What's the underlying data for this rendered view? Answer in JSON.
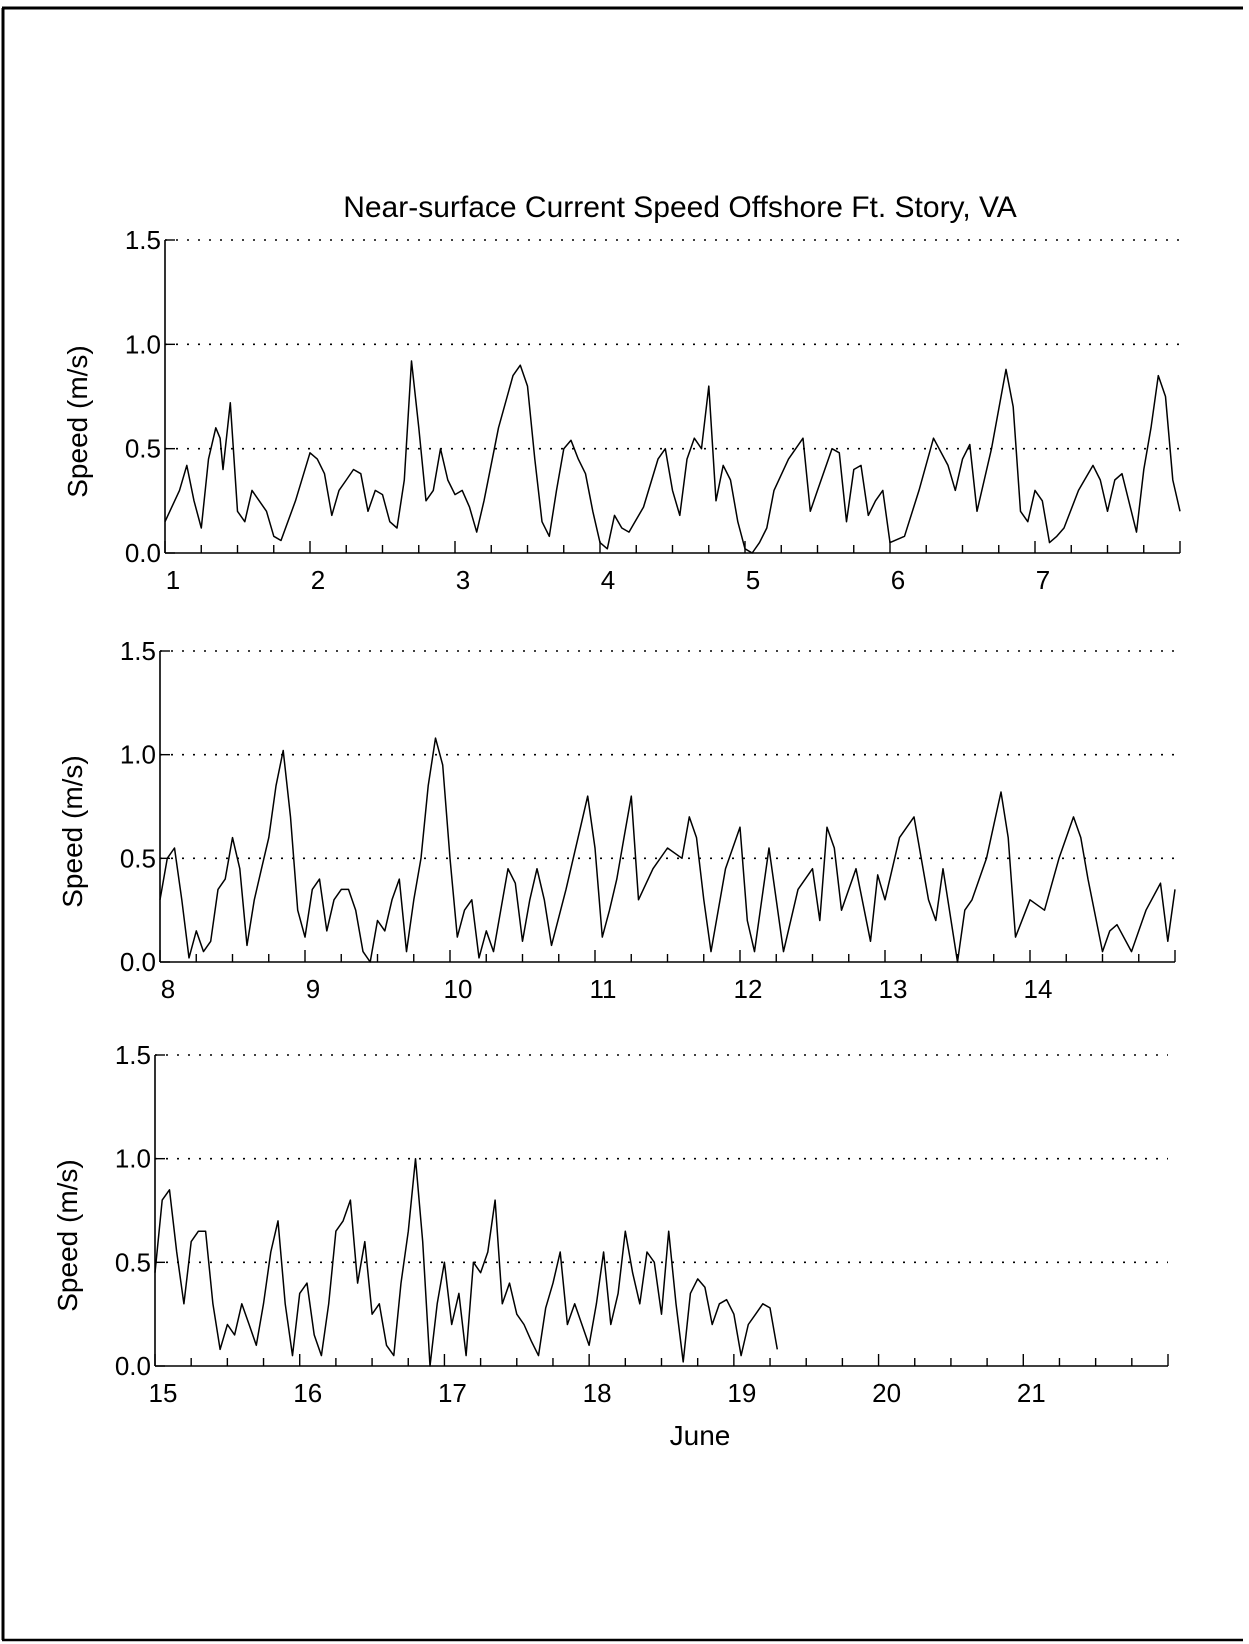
{
  "chart_data": [
    {
      "type": "line",
      "title": "Near-surface Current Speed Offshore Ft. Story, VA",
      "ylabel": "Speed (m/s)",
      "xlabel": "",
      "xlim": [
        1,
        8
      ],
      "ylim": [
        0,
        1.5
      ],
      "x_ticks": [
        "1",
        "2",
        "3",
        "4",
        "5",
        "6",
        "7"
      ],
      "y_ticks": [
        "0.0",
        "0.5",
        "1.0",
        "1.5"
      ],
      "grid": "dotted horizontal at 0.5, 1.0, 1.5",
      "series": [
        {
          "x": [
            1.0,
            1.1,
            1.15,
            1.2,
            1.25,
            1.3,
            1.35,
            1.38,
            1.4,
            1.45,
            1.5,
            1.55,
            1.6,
            1.7,
            1.75,
            1.8,
            1.9,
            2.0,
            2.05,
            2.1,
            2.15,
            2.2,
            2.25,
            2.3,
            2.35,
            2.4,
            2.45,
            2.5,
            2.55,
            2.6,
            2.65,
            2.7,
            2.75,
            2.8,
            2.85,
            2.9,
            2.95,
            3.0,
            3.05,
            3.1,
            3.15,
            3.2,
            3.3,
            3.4,
            3.45,
            3.5,
            3.55,
            3.6,
            3.65,
            3.7,
            3.75,
            3.8,
            3.85,
            3.9,
            3.95,
            4.0,
            4.05,
            4.1,
            4.15,
            4.2,
            4.3,
            4.4,
            4.45,
            4.5,
            4.55,
            4.6,
            4.65,
            4.7,
            4.75,
            4.8,
            4.85,
            4.9,
            4.95,
            5.0,
            5.05,
            5.1,
            5.15,
            5.2,
            5.3,
            5.4,
            5.45,
            5.5,
            5.6,
            5.65,
            5.7,
            5.75,
            5.8,
            5.85,
            5.9,
            5.95,
            6.0,
            6.1,
            6.2,
            6.3,
            6.4,
            6.45,
            6.5,
            6.55,
            6.6,
            6.7,
            6.8,
            6.85,
            6.9,
            6.95,
            7.0,
            7.05,
            7.1,
            7.15,
            7.2,
            7.3,
            7.4,
            7.45,
            7.5,
            7.55,
            7.6,
            7.7,
            7.75,
            7.8,
            7.85,
            7.9,
            7.95,
            8.0
          ],
          "y": [
            0.15,
            0.3,
            0.42,
            0.25,
            0.12,
            0.45,
            0.6,
            0.55,
            0.4,
            0.72,
            0.2,
            0.15,
            0.3,
            0.2,
            0.08,
            0.06,
            0.25,
            0.48,
            0.45,
            0.38,
            0.18,
            0.3,
            0.35,
            0.4,
            0.38,
            0.2,
            0.3,
            0.28,
            0.15,
            0.12,
            0.35,
            0.92,
            0.6,
            0.25,
            0.3,
            0.5,
            0.35,
            0.28,
            0.3,
            0.22,
            0.1,
            0.25,
            0.6,
            0.85,
            0.9,
            0.8,
            0.45,
            0.15,
            0.08,
            0.3,
            0.5,
            0.54,
            0.45,
            0.38,
            0.2,
            0.05,
            0.02,
            0.18,
            0.12,
            0.1,
            0.22,
            0.45,
            0.5,
            0.3,
            0.18,
            0.45,
            0.55,
            0.5,
            0.8,
            0.25,
            0.42,
            0.35,
            0.15,
            0.02,
            0.0,
            0.05,
            0.12,
            0.3,
            0.45,
            0.55,
            0.2,
            0.3,
            0.5,
            0.48,
            0.15,
            0.4,
            0.42,
            0.18,
            0.25,
            0.3,
            0.05,
            0.08,
            0.3,
            0.55,
            0.42,
            0.3,
            0.45,
            0.52,
            0.2,
            0.5,
            0.88,
            0.7,
            0.2,
            0.15,
            0.3,
            0.25,
            0.05,
            0.08,
            0.12,
            0.3,
            0.42,
            0.35,
            0.2,
            0.35,
            0.38,
            0.1,
            0.4,
            0.6,
            0.85,
            0.75,
            0.35,
            0.2
          ]
        }
      ]
    },
    {
      "type": "line",
      "title": "",
      "ylabel": "Speed (m/s)",
      "xlabel": "",
      "xlim": [
        8,
        15
      ],
      "ylim": [
        0,
        1.5
      ],
      "x_ticks": [
        "8",
        "9",
        "10",
        "11",
        "12",
        "13",
        "14"
      ],
      "y_ticks": [
        "0.0",
        "0.5",
        "1.0",
        "1.5"
      ],
      "grid": "dotted horizontal at 0.5, 1.0, 1.5",
      "series": [
        {
          "x": [
            8.0,
            8.05,
            8.1,
            8.15,
            8.2,
            8.25,
            8.3,
            8.35,
            8.4,
            8.45,
            8.5,
            8.55,
            8.6,
            8.65,
            8.7,
            8.75,
            8.8,
            8.85,
            8.9,
            8.95,
            9.0,
            9.05,
            9.1,
            9.15,
            9.2,
            9.25,
            9.3,
            9.35,
            9.4,
            9.45,
            9.5,
            9.55,
            9.6,
            9.65,
            9.7,
            9.75,
            9.8,
            9.85,
            9.9,
            9.95,
            10.0,
            10.05,
            10.1,
            10.15,
            10.2,
            10.25,
            10.3,
            10.4,
            10.45,
            10.5,
            10.55,
            10.6,
            10.65,
            10.7,
            10.8,
            10.9,
            10.95,
            11.0,
            11.05,
            11.1,
            11.15,
            11.2,
            11.25,
            11.3,
            11.4,
            11.5,
            11.6,
            11.65,
            11.7,
            11.75,
            11.8,
            11.9,
            12.0,
            12.05,
            12.1,
            12.2,
            12.3,
            12.4,
            12.5,
            12.55,
            12.6,
            12.65,
            12.7,
            12.8,
            12.9,
            12.95,
            13.0,
            13.1,
            13.2,
            13.3,
            13.35,
            13.4,
            13.5,
            13.55,
            13.6,
            13.7,
            13.8,
            13.85,
            13.9,
            14.0,
            14.1,
            14.2,
            14.3,
            14.35,
            14.4,
            14.5,
            14.55,
            14.6,
            14.7,
            14.8,
            14.9,
            14.95,
            15.0
          ],
          "y": [
            0.3,
            0.5,
            0.55,
            0.3,
            0.02,
            0.15,
            0.05,
            0.1,
            0.35,
            0.4,
            0.6,
            0.45,
            0.08,
            0.3,
            0.45,
            0.6,
            0.85,
            1.02,
            0.7,
            0.25,
            0.12,
            0.35,
            0.4,
            0.15,
            0.3,
            0.35,
            0.35,
            0.25,
            0.05,
            0.0,
            0.2,
            0.15,
            0.3,
            0.4,
            0.05,
            0.3,
            0.5,
            0.85,
            1.08,
            0.95,
            0.5,
            0.12,
            0.25,
            0.3,
            0.02,
            0.15,
            0.05,
            0.45,
            0.38,
            0.1,
            0.3,
            0.45,
            0.3,
            0.08,
            0.35,
            0.65,
            0.8,
            0.55,
            0.12,
            0.25,
            0.4,
            0.6,
            0.8,
            0.3,
            0.45,
            0.55,
            0.5,
            0.7,
            0.6,
            0.3,
            0.05,
            0.45,
            0.65,
            0.2,
            0.05,
            0.55,
            0.05,
            0.35,
            0.45,
            0.2,
            0.65,
            0.55,
            0.25,
            0.45,
            0.1,
            0.42,
            0.3,
            0.6,
            0.7,
            0.3,
            0.2,
            0.45,
            0.0,
            0.25,
            0.3,
            0.5,
            0.82,
            0.6,
            0.12,
            0.3,
            0.25,
            0.5,
            0.7,
            0.6,
            0.4,
            0.05,
            0.15,
            0.18,
            0.05,
            0.25,
            0.38,
            0.1,
            0.35
          ]
        }
      ]
    },
    {
      "type": "line",
      "title": "",
      "ylabel": "Speed (m/s)",
      "xlabel": "June",
      "xlim": [
        15,
        22
      ],
      "ylim": [
        0,
        1.5
      ],
      "x_ticks": [
        "15",
        "16",
        "17",
        "18",
        "19",
        "20",
        "21"
      ],
      "y_ticks": [
        "0.0",
        "0.5",
        "1.0",
        "1.5"
      ],
      "grid": "dotted horizontal at 0.5, 1.0, 1.5",
      "series": [
        {
          "x": [
            15.0,
            15.05,
            15.1,
            15.15,
            15.2,
            15.25,
            15.3,
            15.35,
            15.4,
            15.45,
            15.5,
            15.55,
            15.6,
            15.65,
            15.7,
            15.75,
            15.8,
            15.85,
            15.9,
            15.95,
            16.0,
            16.05,
            16.1,
            16.15,
            16.2,
            16.25,
            16.3,
            16.35,
            16.4,
            16.45,
            16.5,
            16.55,
            16.6,
            16.65,
            16.7,
            16.75,
            16.8,
            16.85,
            16.9,
            16.95,
            17.0,
            17.05,
            17.1,
            17.15,
            17.2,
            17.25,
            17.3,
            17.35,
            17.4,
            17.45,
            17.5,
            17.55,
            17.6,
            17.65,
            17.7,
            17.75,
            17.8,
            17.85,
            17.9,
            17.95,
            18.0,
            18.05,
            18.1,
            18.15,
            18.2,
            18.25,
            18.3,
            18.35,
            18.4,
            18.45,
            18.5,
            18.55,
            18.6,
            18.65,
            18.7,
            18.75,
            18.8,
            18.85,
            18.9,
            18.95,
            19.0,
            19.05,
            19.1,
            19.15,
            19.2,
            19.25,
            19.3
          ],
          "y": [
            0.45,
            0.8,
            0.85,
            0.55,
            0.3,
            0.6,
            0.65,
            0.65,
            0.3,
            0.08,
            0.2,
            0.15,
            0.3,
            0.2,
            0.1,
            0.3,
            0.55,
            0.7,
            0.3,
            0.05,
            0.35,
            0.4,
            0.15,
            0.05,
            0.3,
            0.65,
            0.7,
            0.8,
            0.4,
            0.6,
            0.25,
            0.3,
            0.1,
            0.05,
            0.4,
            0.65,
            1.0,
            0.6,
            0.0,
            0.3,
            0.5,
            0.2,
            0.35,
            0.05,
            0.5,
            0.45,
            0.55,
            0.8,
            0.3,
            0.4,
            0.25,
            0.2,
            0.12,
            0.05,
            0.28,
            0.4,
            0.55,
            0.2,
            0.3,
            0.2,
            0.1,
            0.3,
            0.55,
            0.2,
            0.35,
            0.65,
            0.45,
            0.3,
            0.55,
            0.5,
            0.25,
            0.65,
            0.3,
            0.02,
            0.35,
            0.42,
            0.38,
            0.2,
            0.3,
            0.32,
            0.25,
            0.05,
            0.2,
            0.25,
            0.3,
            0.28,
            0.08
          ]
        }
      ]
    }
  ]
}
